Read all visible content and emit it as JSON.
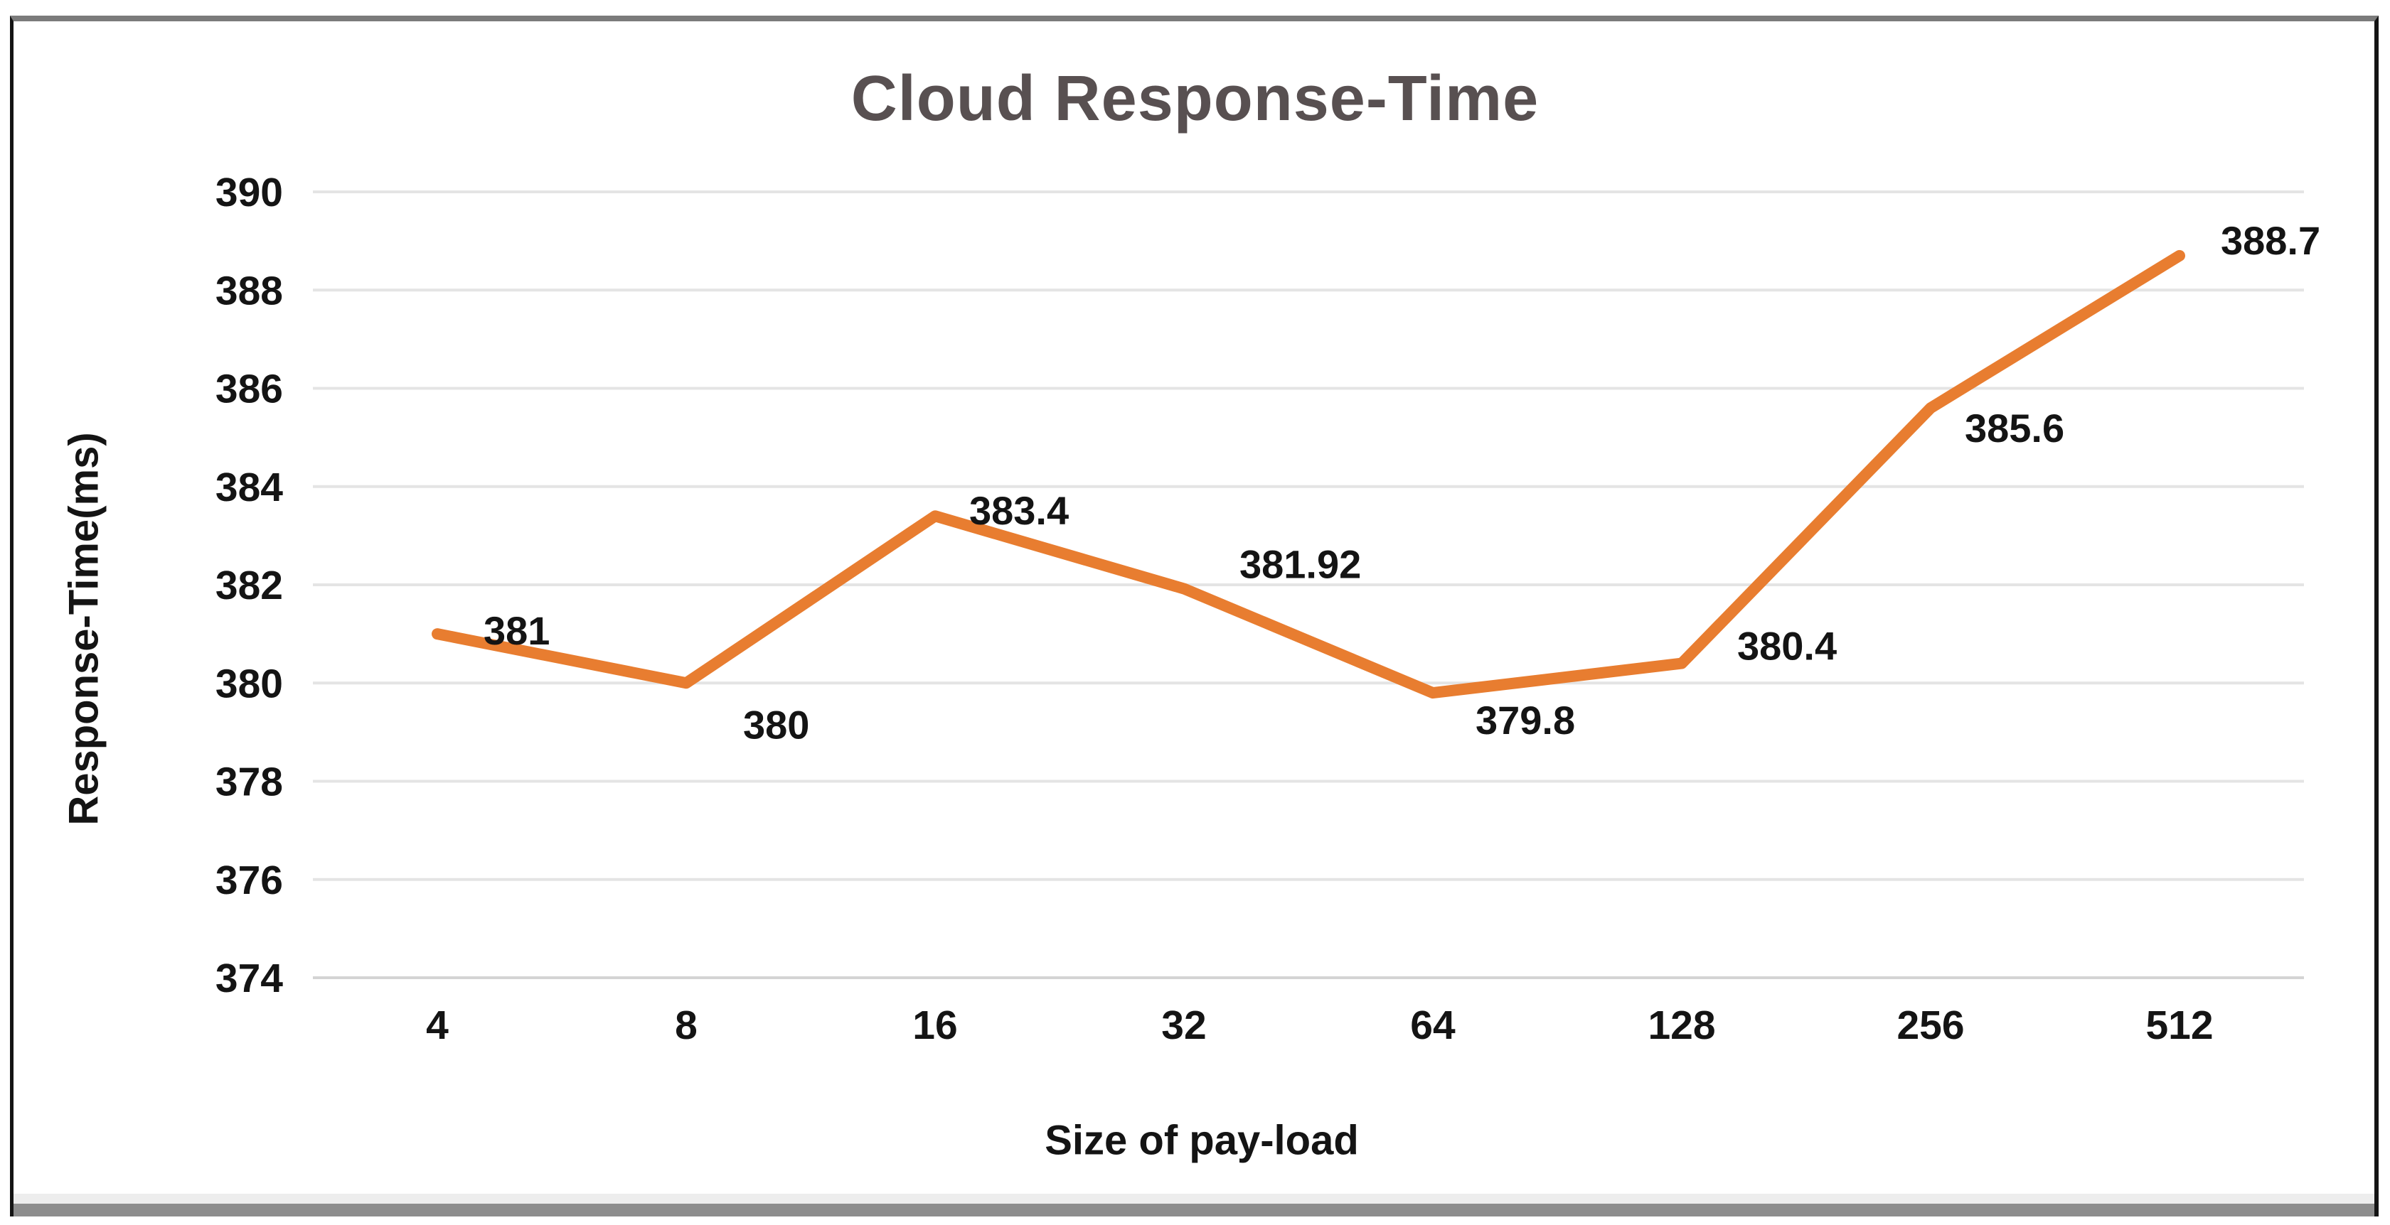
{
  "chart": {
    "title": "Cloud Response-Time"
  },
  "chart_data": {
    "type": "line",
    "title": "Cloud Response-Time",
    "xlabel": "Size of pay-load",
    "ylabel": "Response-Time(ms)",
    "categories": [
      "4",
      "8",
      "16",
      "32",
      "64",
      "128",
      "256",
      "512"
    ],
    "values": [
      381,
      380,
      383.4,
      381.92,
      379.8,
      380.4,
      385.6,
      388.7
    ],
    "data_labels": [
      "381",
      "380",
      "383.4",
      "381.92",
      "379.8",
      "380.4",
      "385.6",
      "388.7"
    ],
    "ylim": [
      374,
      390
    ],
    "y_ticks": [
      374,
      376,
      378,
      380,
      382,
      384,
      386,
      388,
      390
    ],
    "grid": "horizontal",
    "legend": "none",
    "colors": {
      "line": "#e87d30",
      "gridline": "#e4e4e4",
      "title": "#585051",
      "text": "#141414"
    }
  }
}
